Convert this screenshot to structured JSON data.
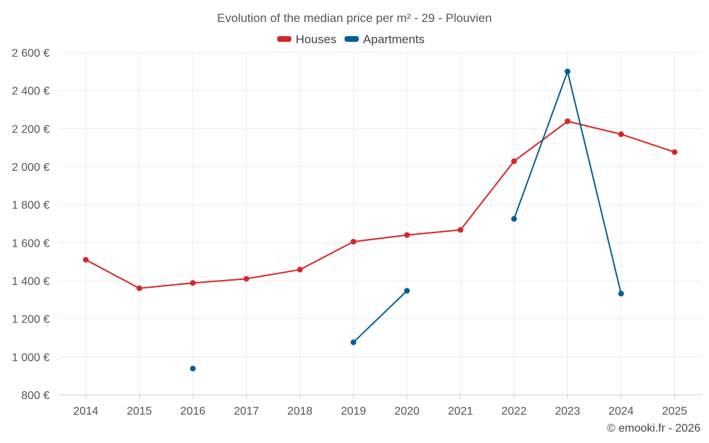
{
  "chart_data": {
    "type": "line",
    "title": "Evolution of the median price per m² - 29 - Plouvien",
    "categories": [
      "2014",
      "2015",
      "2016",
      "2017",
      "2018",
      "2019",
      "2020",
      "2021",
      "2022",
      "2023",
      "2024",
      "2025"
    ],
    "y_ticks": [
      800,
      1000,
      1200,
      1400,
      1600,
      1800,
      2000,
      2200,
      2400,
      2600
    ],
    "y_tick_labels": [
      "800 €",
      "1 000 €",
      "1 200 €",
      "1 400 €",
      "1 600 €",
      "1 800 €",
      "2 000 €",
      "2 200 €",
      "2 400 €",
      "2 600 €"
    ],
    "ylim": [
      800,
      2600
    ],
    "grid": true,
    "legend_position": "top-center",
    "series": [
      {
        "name": "Houses",
        "color": "#d62728",
        "values": [
          1510,
          1360,
          1388,
          1410,
          1458,
          1605,
          1640,
          1667,
          2028,
          2238,
          2170,
          2076
        ]
      },
      {
        "name": "Apartments",
        "color": "#005f96",
        "values": [
          null,
          null,
          938,
          null,
          null,
          1076,
          1347,
          null,
          1725,
          2500,
          1332,
          null
        ]
      }
    ],
    "credit": "© emooki.fr - 2026"
  }
}
